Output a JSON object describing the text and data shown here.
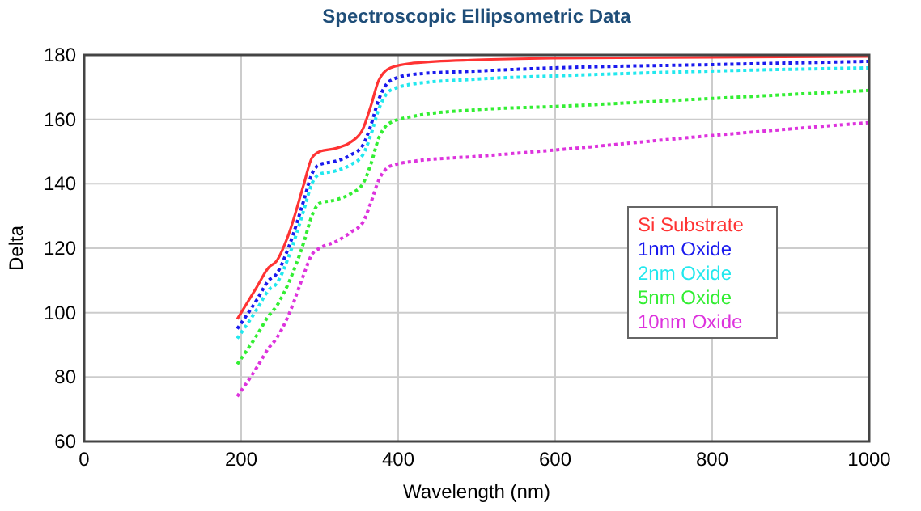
{
  "chart_data": {
    "type": "line",
    "title": "Spectroscopic Ellipsometric Data",
    "xlabel": "Wavelength (nm)",
    "ylabel": "Delta",
    "xlim": [
      0,
      1000
    ],
    "ylim": [
      60,
      180
    ],
    "xticks": [
      0,
      200,
      400,
      600,
      800,
      1000
    ],
    "yticks": [
      60,
      80,
      100,
      120,
      140,
      160,
      180
    ],
    "grid": true,
    "legend": "right",
    "x": [
      195,
      220,
      235,
      245,
      260,
      280,
      290,
      300,
      320,
      340,
      355,
      365,
      375,
      390,
      420,
      500,
      600,
      800,
      1000
    ],
    "series": [
      {
        "name": "Si Substrate",
        "color": "#ff3333",
        "line_style": "solid",
        "values": [
          98,
          108,
          114,
          116,
          124,
          140,
          148,
          150,
          151,
          153,
          157,
          164,
          172,
          176,
          177.5,
          178.5,
          179,
          179.3,
          179.5
        ]
      },
      {
        "name": "1nm Oxide",
        "color": "#1a1aee",
        "line_style": "dotted",
        "values": [
          95,
          104,
          110,
          112,
          120,
          135,
          143,
          146,
          147,
          149,
          152,
          158,
          166,
          172,
          174,
          175,
          176,
          177,
          178
        ]
      },
      {
        "name": "2nm Oxide",
        "color": "#22e8ee",
        "line_style": "dotted",
        "values": [
          92,
          101,
          107,
          109,
          117,
          132,
          140,
          143,
          144,
          146,
          149,
          155,
          163,
          169,
          171,
          172.5,
          173.5,
          175,
          176
        ]
      },
      {
        "name": "5nm Oxide",
        "color": "#33ee33",
        "line_style": "dotted",
        "values": [
          84,
          93,
          99,
          102,
          109,
          122,
          130,
          134,
          135,
          137,
          140,
          146,
          154,
          159,
          161,
          163,
          164,
          166.5,
          169
        ]
      },
      {
        "name": "10nm Oxide",
        "color": "#dd33dd",
        "line_style": "dotted",
        "values": [
          74,
          83,
          89,
          92,
          99,
          112,
          118,
          120,
          122,
          125,
          128,
          134,
          141,
          145.5,
          147,
          148.5,
          150.5,
          155,
          159
        ]
      }
    ]
  }
}
